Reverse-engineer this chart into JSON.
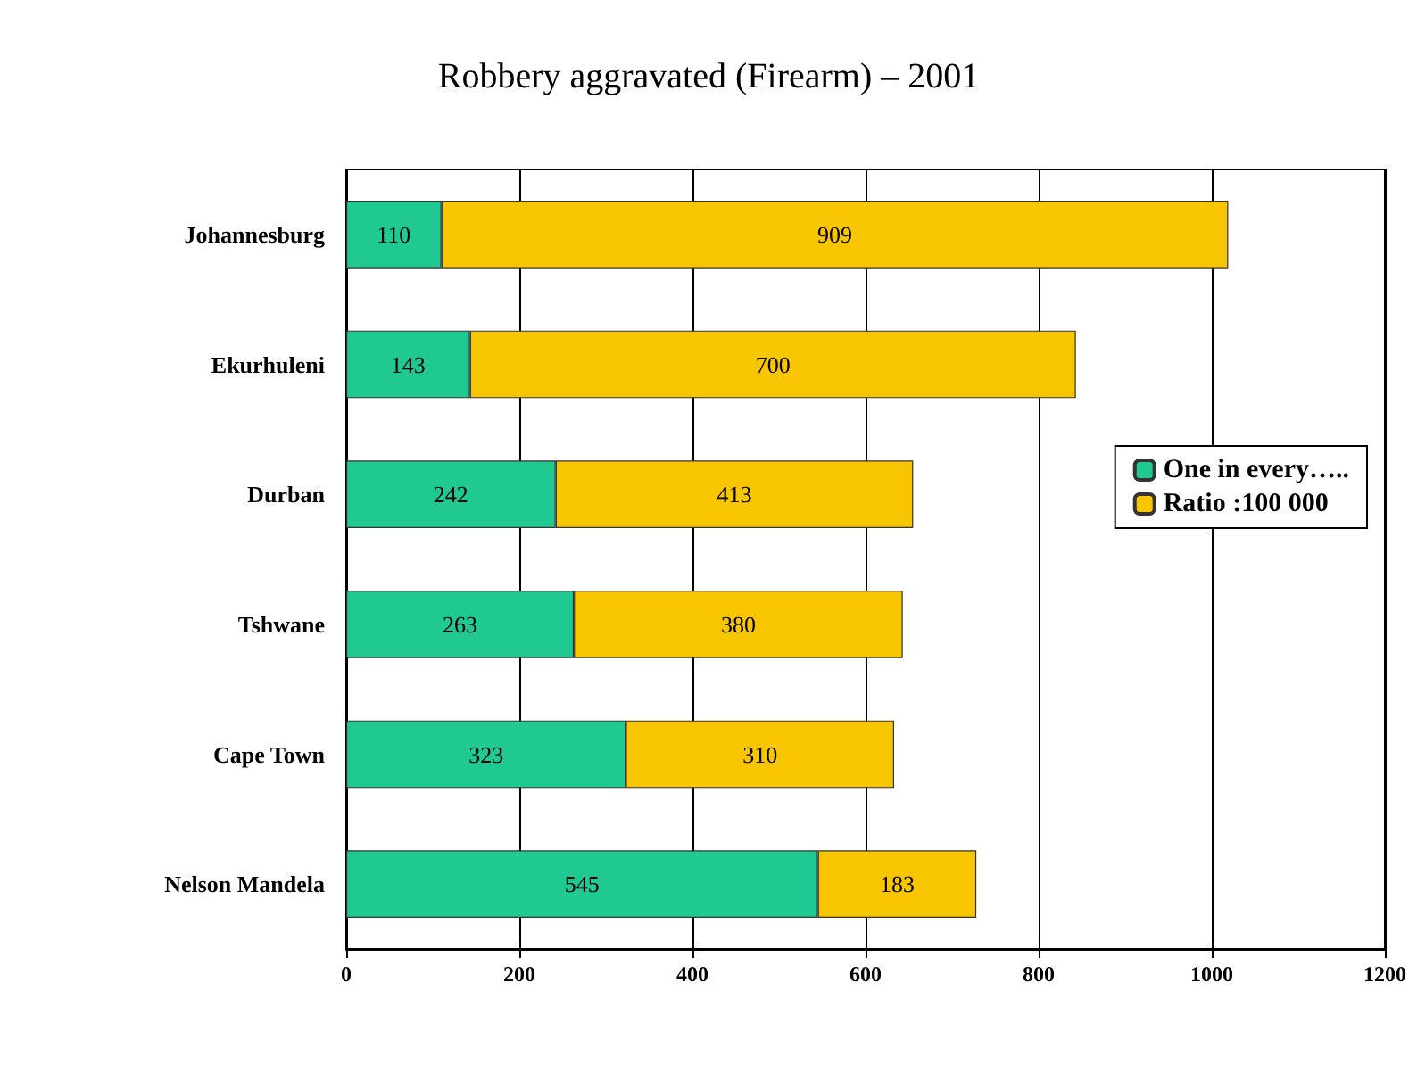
{
  "chart_data": {
    "type": "bar",
    "orientation": "horizontal",
    "stacked": true,
    "title": "Robbery aggravated (Firearm) – 2001",
    "categories": [
      "Johannesburg",
      "Ekurhuleni",
      "Durban",
      "Tshwane",
      "Cape Town",
      "Nelson Mandela"
    ],
    "series": [
      {
        "name": "One in every…..",
        "color": "#1fc991",
        "values": [
          110,
          143,
          242,
          263,
          323,
          545
        ]
      },
      {
        "name": "Ratio :100 000",
        "color": "#f7c600",
        "values": [
          909,
          700,
          413,
          380,
          310,
          183
        ]
      }
    ],
    "xlim": [
      0,
      1200
    ],
    "xticks": [
      0,
      200,
      400,
      600,
      800,
      1000,
      1200
    ],
    "grid": "x",
    "legend": "right",
    "data_labels": true
  }
}
